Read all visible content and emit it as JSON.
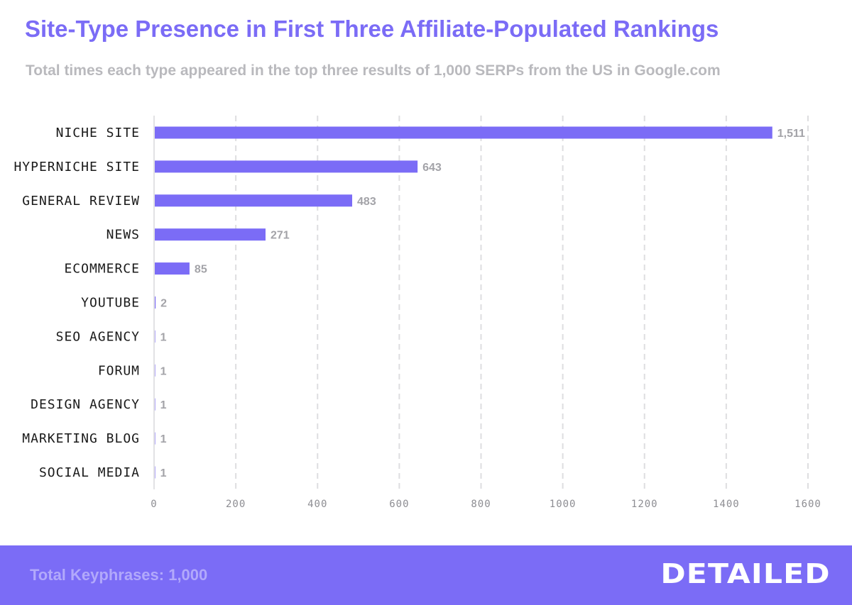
{
  "chart_data": {
    "type": "bar",
    "orientation": "horizontal",
    "title": "Site-Type Presence in First Three Affiliate-Populated Rankings",
    "subtitle": "Total times each type appeared in the top three results of 1,000 SERPs from the US in Google.com",
    "categories": [
      "NICHE SITE",
      "HYPERNICHE SITE",
      "GENERAL REVIEW",
      "NEWS",
      "ECOMMERCE",
      "YOUTUBE",
      "SEO AGENCY",
      "FORUM",
      "DESIGN AGENCY",
      "MARKETING BLOG",
      "SOCIAL MEDIA"
    ],
    "values": [
      1511,
      643,
      483,
      271,
      85,
      2,
      1,
      1,
      1,
      1,
      1
    ],
    "value_labels": [
      "1,511",
      "643",
      "483",
      "271",
      "85",
      "2",
      "1",
      "1",
      "1",
      "1",
      "1"
    ],
    "xlim": [
      0,
      1600
    ],
    "xticks": [
      "0",
      "200",
      "400",
      "600",
      "800",
      "1000",
      "1200",
      "1400",
      "1600"
    ],
    "xtick_values": [
      0,
      200,
      400,
      600,
      800,
      1000,
      1200,
      1400,
      1600
    ],
    "xlabel": "",
    "ylabel": "",
    "grid": "vertical dashed",
    "bar_color": "#7b6cf6"
  },
  "footer": {
    "total_text": "Total Keyphrases: 1,000",
    "logo_text": "DETAILED"
  },
  "colors": {
    "accent": "#7b6cf6",
    "subtitle": "#b9b9bd",
    "footer_text": "#b2a9fb"
  }
}
